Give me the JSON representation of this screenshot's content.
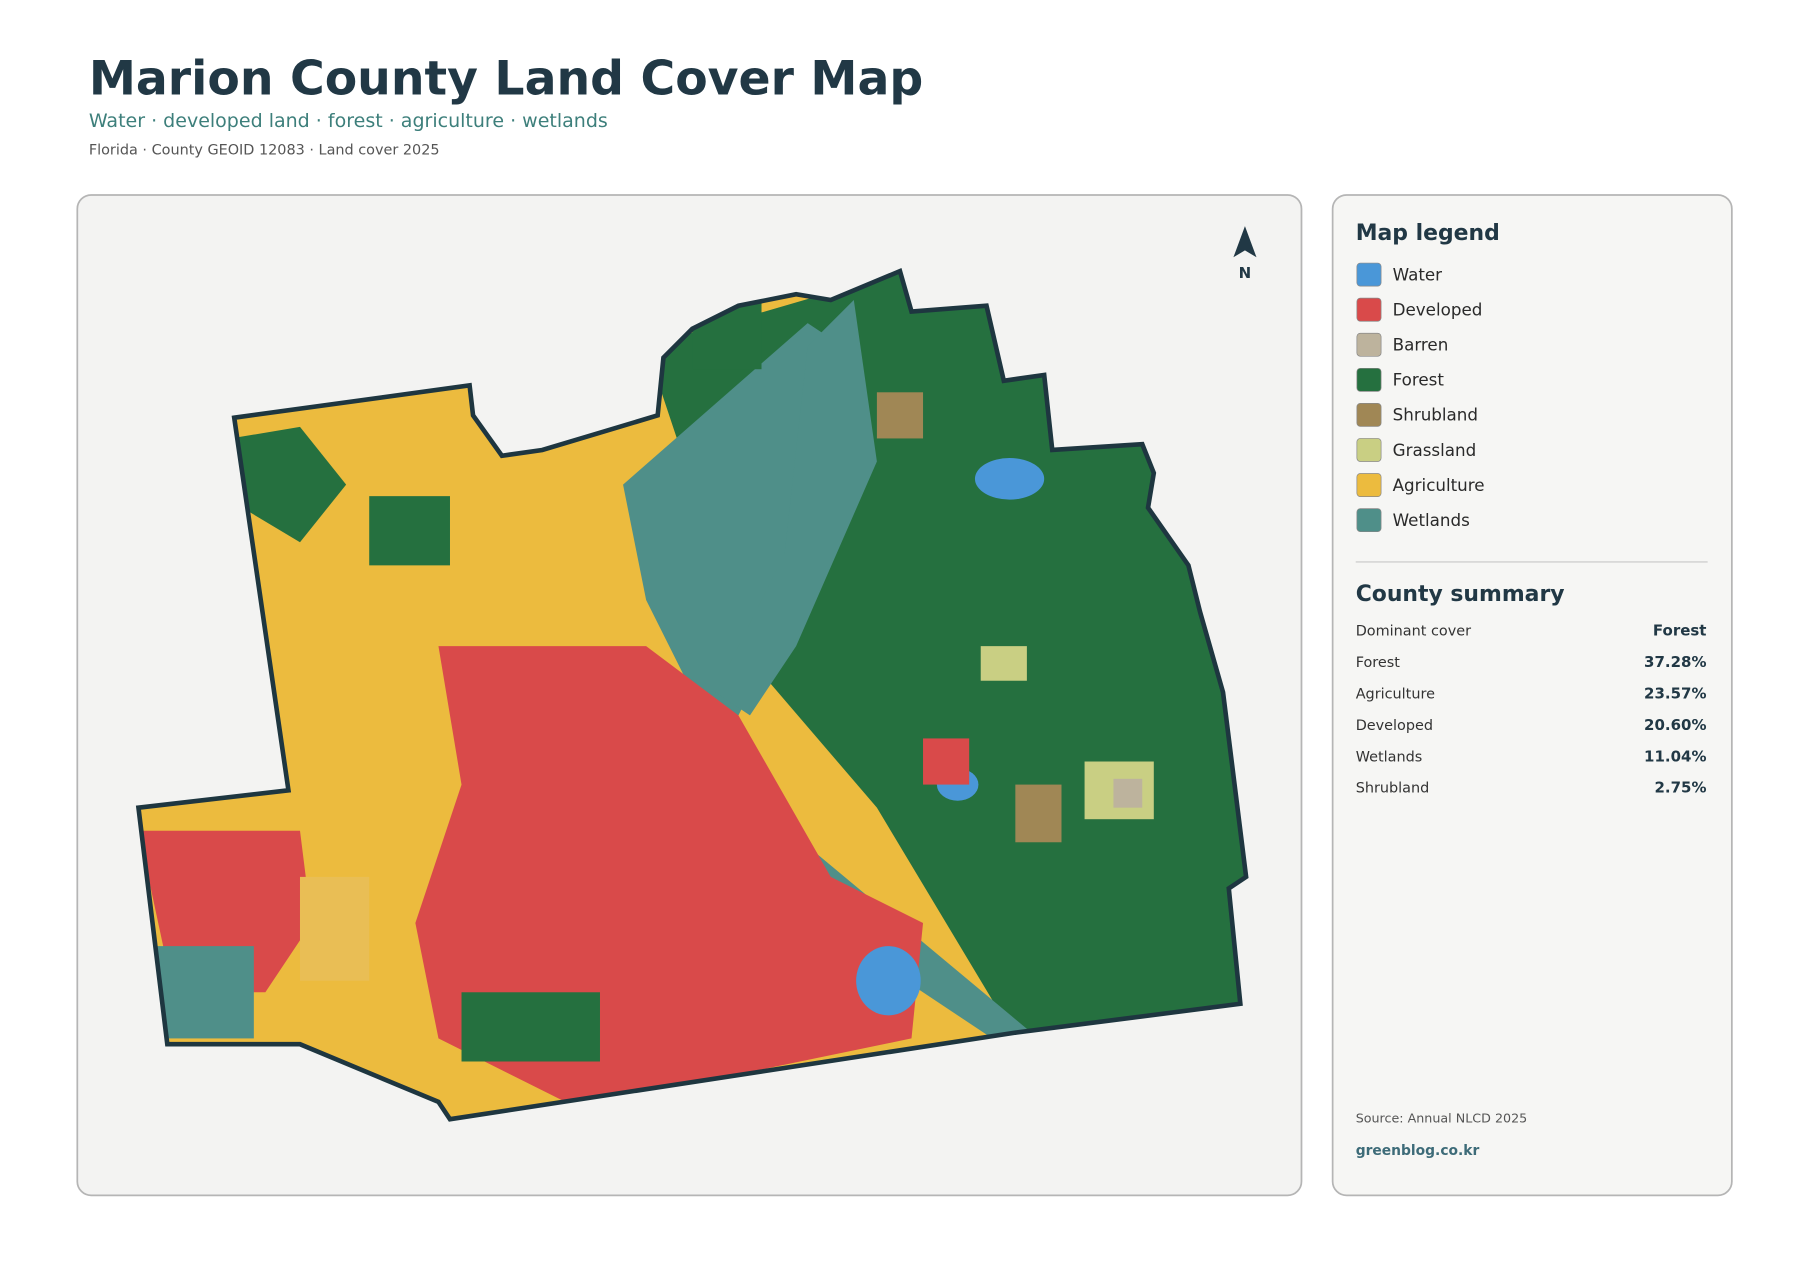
{
  "header": {
    "title": "Marion County Land Cover Map",
    "subtitle": "Water · developed land · forest · agriculture · wetlands",
    "meta": "Florida · County GEOID 12083 · Land cover 2025"
  },
  "map": {
    "north": "N"
  },
  "legend": {
    "title": "Map legend",
    "items": [
      {
        "label": "Water",
        "color": "#4a97d8"
      },
      {
        "label": "Developed",
        "color": "#d94a4a"
      },
      {
        "label": "Barren",
        "color": "#bdb39d"
      },
      {
        "label": "Forest",
        "color": "#25703f"
      },
      {
        "label": "Shrubland",
        "color": "#a08755"
      },
      {
        "label": "Grassland",
        "color": "#c9cf83"
      },
      {
        "label": "Agriculture",
        "color": "#ecbb3e"
      },
      {
        "label": "Wetlands",
        "color": "#4f8f89"
      }
    ]
  },
  "summary": {
    "title": "County summary",
    "rows": [
      [
        "Dominant cover",
        "Forest"
      ],
      [
        "Forest",
        "37.28%"
      ],
      [
        "Agriculture",
        "23.57%"
      ],
      [
        "Developed",
        "20.60%"
      ],
      [
        "Wetlands",
        "11.04%"
      ],
      [
        "Shrubland",
        "2.75%"
      ]
    ]
  },
  "footer": {
    "source": "Source: Annual NLCD 2025",
    "site": "greenblog.co.kr"
  }
}
